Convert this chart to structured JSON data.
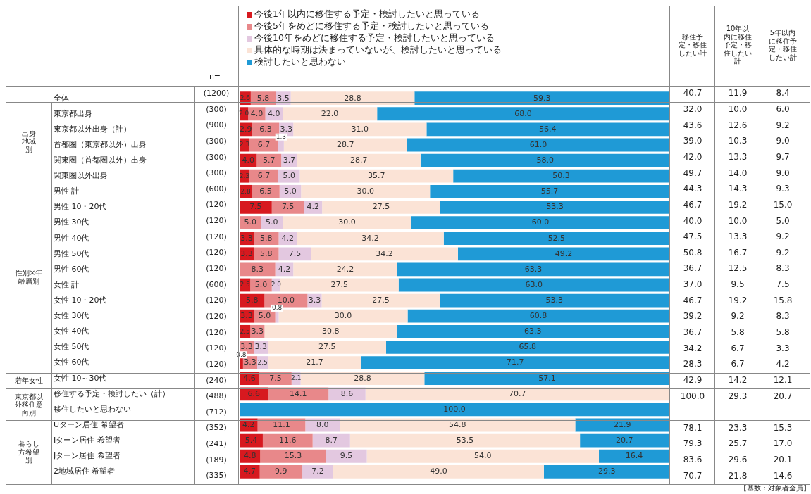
{
  "chart_data": {
    "type": "bar",
    "orientation": "horizontal",
    "stacked": true,
    "legend": "top",
    "tick_labels": "y",
    "grid": false,
    "xlim": [
      0,
      100
    ],
    "categories": [
      "全体",
      "東京都出身",
      "東京都以外出身（計）",
      "首都圏（東京都以外）出身",
      "関東圏（首都圏以外）出身",
      "関東圏以外出身",
      "男性 計",
      "男性 10・20代",
      "男性 30代",
      "男性 40代",
      "男性 50代",
      "男性 60代",
      "女性 計",
      "女性 10・20代",
      "女性 30代",
      "女性 40代",
      "女性 50代",
      "女性 60代",
      "女性 10～30代",
      "移住する予定・検討したい（計）",
      "移住したいと思わない",
      "Uターン居住 希望者",
      "Iターン居住 希望者",
      "Jターン居住 希望者",
      "2地域居住 希望者"
    ],
    "series": [
      {
        "name": "今後1年以内に移住する予定・検討したいと思っている",
        "color": "#d7191f",
        "values": [
          2.6,
          2.0,
          2.9,
          2.3,
          4.0,
          2.3,
          2.8,
          7.5,
          0,
          3.3,
          3.3,
          0,
          2.5,
          5.8,
          3.3,
          2.5,
          0,
          0.8,
          4.6,
          6.6,
          0,
          4.2,
          5.4,
          4.8,
          4.7
        ],
        "value_labels": [
          "2.6",
          "2.0",
          "2.9",
          "2.3",
          "4.0",
          "2.3",
          "2.8",
          "7.5",
          null,
          "3.3",
          "3.3",
          null,
          "2.5",
          "5.8",
          "3.3",
          "2.5",
          null,
          "0.8",
          "4.6",
          "6.6",
          null,
          "4.2",
          "5.4",
          "4.8",
          "4.7"
        ]
      },
      {
        "name": "今後5年をめどに移住する予定・検討したいと思っている",
        "color": "#e8888a",
        "values": [
          5.8,
          4.0,
          6.3,
          6.7,
          5.7,
          6.7,
          6.5,
          7.5,
          5.0,
          5.8,
          5.8,
          8.3,
          5.0,
          10.0,
          5.0,
          3.3,
          3.3,
          3.3,
          7.5,
          14.1,
          0,
          11.1,
          11.6,
          15.3,
          9.9
        ],
        "value_labels": [
          "5.8",
          "4.0",
          "6.3",
          "6.7",
          "5.7",
          "6.7",
          "6.5",
          "7.5",
          "5.0",
          "5.8",
          "5.8",
          "8.3",
          "5.0",
          "10.0",
          "5.0",
          "3.3",
          "3.3",
          "3.3",
          "7.5",
          "14.1",
          null,
          "11.1",
          "11.6",
          "15.3",
          "9.9"
        ]
      },
      {
        "name": "今後10年をめどに移住する予定・検討したいと思っている",
        "color": "#e3c8e0",
        "values": [
          3.5,
          4.0,
          3.3,
          1.3,
          3.7,
          5.0,
          5.0,
          4.2,
          5.0,
          4.2,
          7.5,
          4.2,
          2.0,
          3.3,
          0.8,
          0,
          3.3,
          2.5,
          2.1,
          8.6,
          0,
          8.0,
          8.7,
          9.5,
          7.2
        ],
        "value_labels": [
          "3.5",
          "4.0",
          "3.3",
          "1.3",
          "3.7",
          "5.0",
          "5.0",
          "4.2",
          "5.0",
          "4.2",
          "7.5",
          "4.2",
          "2.0",
          "3.3",
          "0.8",
          null,
          "3.3",
          "2.5",
          "2.1",
          "8.6",
          null,
          "8.0",
          "8.7",
          "9.5",
          "7.2"
        ]
      },
      {
        "name": "具体的な時期は決まっていないが、検討したいと思っている",
        "color": "#fbe3d6",
        "values": [
          28.8,
          22.0,
          31.0,
          28.7,
          28.7,
          35.7,
          30.0,
          27.5,
          30.0,
          34.2,
          34.2,
          24.2,
          27.5,
          27.5,
          30.0,
          30.8,
          27.5,
          21.7,
          28.8,
          70.7,
          0,
          54.8,
          53.5,
          54.0,
          49.0
        ],
        "value_labels": [
          "28.8",
          "22.0",
          "31.0",
          "28.7",
          "28.7",
          "35.7",
          "30.0",
          "27.5",
          "30.0",
          "34.2",
          "34.2",
          "24.2",
          "27.5",
          "27.5",
          "30.0",
          "30.8",
          "27.5",
          "21.7",
          "28.8",
          "70.7",
          null,
          "54.8",
          "53.5",
          "54.0",
          "49.0"
        ]
      },
      {
        "name": "検討したいと思わない",
        "color": "#1f9ad6",
        "values": [
          59.3,
          68.0,
          56.4,
          61.0,
          58.0,
          50.3,
          55.7,
          53.3,
          60.0,
          52.5,
          49.2,
          63.3,
          63.0,
          53.3,
          60.8,
          63.3,
          65.8,
          71.7,
          57.1,
          0,
          100.0,
          21.9,
          20.7,
          16.4,
          29.3
        ],
        "value_labels": [
          "59.3",
          "68.0",
          "56.4",
          "61.0",
          "58.0",
          "50.3",
          "55.7",
          "53.3",
          "60.0",
          "52.5",
          "49.2",
          "63.3",
          "63.0",
          "53.3",
          "60.8",
          "63.3",
          "65.8",
          "71.7",
          "57.1",
          null,
          "100.0",
          "21.9",
          "20.7",
          "16.4",
          "29.3"
        ]
      }
    ],
    "annotations": [
      "n=",
      "(1200)",
      "(300)",
      "(900)",
      "(300)",
      "(300)",
      "(300)",
      "(600)",
      "(120)",
      "(120)",
      "(120)",
      "(120)",
      "(120)",
      "(600)",
      "(120)",
      "(120)",
      "(120)",
      "(120)",
      "(120)",
      "(240)",
      "(488)",
      "(712)",
      "(352)",
      "(241)",
      "(189)",
      "(335)",
      "出身地域別",
      "性別×年齢層別",
      "若年女性",
      "東京都以外移住意向別",
      "暮らし方希望別",
      "移住予定・移住したい計",
      "10年以内に移住予定・移住したい計",
      "5年以内に移住予定・移住したい計",
      "40.7",
      "11.9",
      "8.4",
      "32.0",
      "10.0",
      "6.0",
      "43.6",
      "12.6",
      "9.2",
      "39.0",
      "10.3",
      "9.0",
      "42.0",
      "13.3",
      "9.7",
      "49.7",
      "14.0",
      "9.0",
      "44.3",
      "14.3",
      "9.3",
      "46.7",
      "19.2",
      "15.0",
      "40.0",
      "10.0",
      "5.0",
      "47.5",
      "13.3",
      "9.2",
      "50.8",
      "16.7",
      "9.2",
      "36.7",
      "12.5",
      "8.3",
      "37.0",
      "9.5",
      "7.5",
      "46.7",
      "19.2",
      "15.8",
      "39.2",
      "9.2",
      "8.3",
      "36.7",
      "5.8",
      "5.8",
      "34.2",
      "6.7",
      "3.3",
      "28.3",
      "6.7",
      "4.2",
      "42.9",
      "14.2",
      "12.1",
      "100.0",
      "29.3",
      "20.7",
      "-",
      "-",
      "-",
      "78.1",
      "23.3",
      "15.3",
      "79.3",
      "25.7",
      "17.0",
      "83.6",
      "29.6",
      "20.1",
      "70.7",
      "21.8",
      "14.6",
      "【基数：対象者全員】"
    ]
  }
}
